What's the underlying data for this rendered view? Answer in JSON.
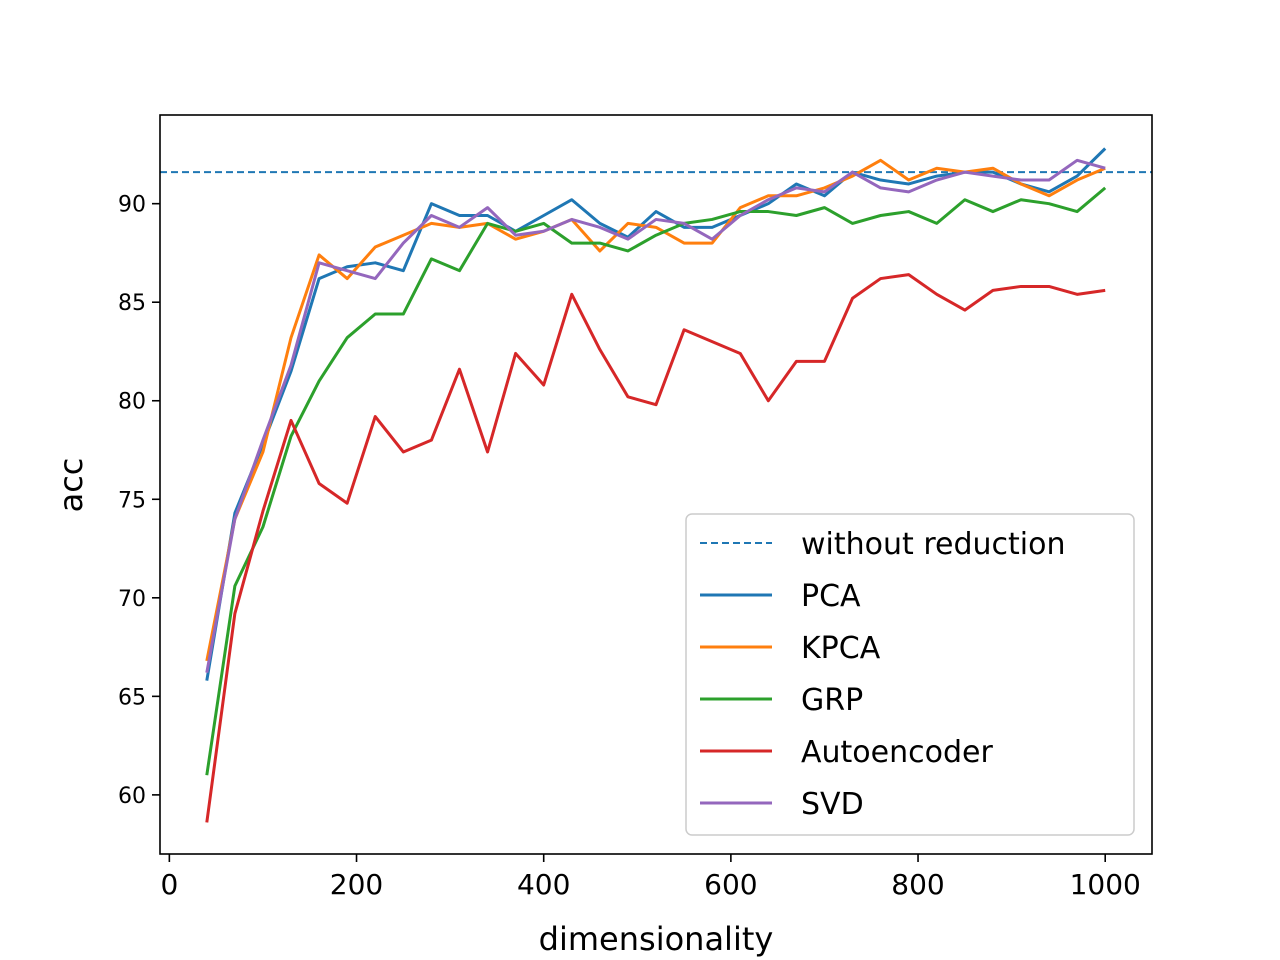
{
  "chart_data": {
    "type": "line",
    "title": "",
    "xlabel": "dimensionality",
    "ylabel": "acc",
    "xlim": [
      -10,
      1050
    ],
    "ylim": [
      57,
      94.5
    ],
    "xticks": [
      0,
      200,
      400,
      600,
      800,
      1000
    ],
    "yticks": [
      60,
      65,
      70,
      75,
      80,
      85,
      90
    ],
    "grid": false,
    "legend_position": "lower-right",
    "x": [
      40,
      70,
      100,
      130,
      160,
      190,
      220,
      250,
      280,
      310,
      340,
      370,
      400,
      430,
      460,
      490,
      520,
      550,
      580,
      610,
      640,
      670,
      700,
      730,
      760,
      790,
      820,
      850,
      880,
      910,
      940,
      970,
      1000
    ],
    "baseline": {
      "name": "without reduction",
      "value": 91.6,
      "color": "#1f77b4",
      "style": "dashed"
    },
    "series": [
      {
        "name": "PCA",
        "color": "#1f77b4",
        "values": [
          65.8,
          74.3,
          77.8,
          81.5,
          86.2,
          86.8,
          87.0,
          86.6,
          90.0,
          89.4,
          89.4,
          88.6,
          89.4,
          90.2,
          89.0,
          88.3,
          89.6,
          88.8,
          88.8,
          89.4,
          90.0,
          91.0,
          90.4,
          91.6,
          91.2,
          91.0,
          91.4,
          91.6,
          91.6,
          91.0,
          90.6,
          91.4,
          92.8
        ]
      },
      {
        "name": "KPCA",
        "color": "#ff7f0e",
        "values": [
          66.8,
          74.0,
          77.4,
          83.2,
          87.4,
          86.2,
          87.8,
          88.4,
          89.0,
          88.8,
          89.0,
          88.2,
          88.6,
          89.2,
          87.6,
          89.0,
          88.8,
          88.0,
          88.0,
          89.8,
          90.4,
          90.4,
          90.8,
          91.4,
          92.2,
          91.2,
          91.8,
          91.6,
          91.8,
          91.0,
          90.4,
          91.2,
          91.8
        ]
      },
      {
        "name": "GRP",
        "color": "#2ca02c",
        "values": [
          61.0,
          70.6,
          73.6,
          78.2,
          81.0,
          83.2,
          84.4,
          84.4,
          87.2,
          86.6,
          89.0,
          88.6,
          89.0,
          88.0,
          88.0,
          87.6,
          88.4,
          89.0,
          89.2,
          89.6,
          89.6,
          89.4,
          89.8,
          89.0,
          89.4,
          89.6,
          89.0,
          90.2,
          89.6,
          90.2,
          90.0,
          89.6,
          90.8
        ]
      },
      {
        "name": "Autoencoder",
        "color": "#d62728",
        "values": [
          58.6,
          69.2,
          74.4,
          79.0,
          75.8,
          74.8,
          79.2,
          77.4,
          78.0,
          81.6,
          77.4,
          82.4,
          80.8,
          85.4,
          82.6,
          80.2,
          79.8,
          83.6,
          83.0,
          82.4,
          80.0,
          82.0,
          82.0,
          85.2,
          86.2,
          86.4,
          85.4,
          84.6,
          85.6,
          85.8,
          85.8,
          85.4,
          85.6
        ]
      },
      {
        "name": "SVD",
        "color": "#9467bd",
        "values": [
          66.2,
          74.0,
          78.0,
          81.8,
          87.0,
          86.6,
          86.2,
          88.0,
          89.4,
          88.8,
          89.8,
          88.4,
          88.6,
          89.2,
          88.8,
          88.2,
          89.2,
          89.0,
          88.2,
          89.4,
          90.2,
          90.8,
          90.6,
          91.6,
          90.8,
          90.6,
          91.2,
          91.6,
          91.4,
          91.2,
          91.2,
          92.2,
          91.8
        ]
      }
    ]
  }
}
